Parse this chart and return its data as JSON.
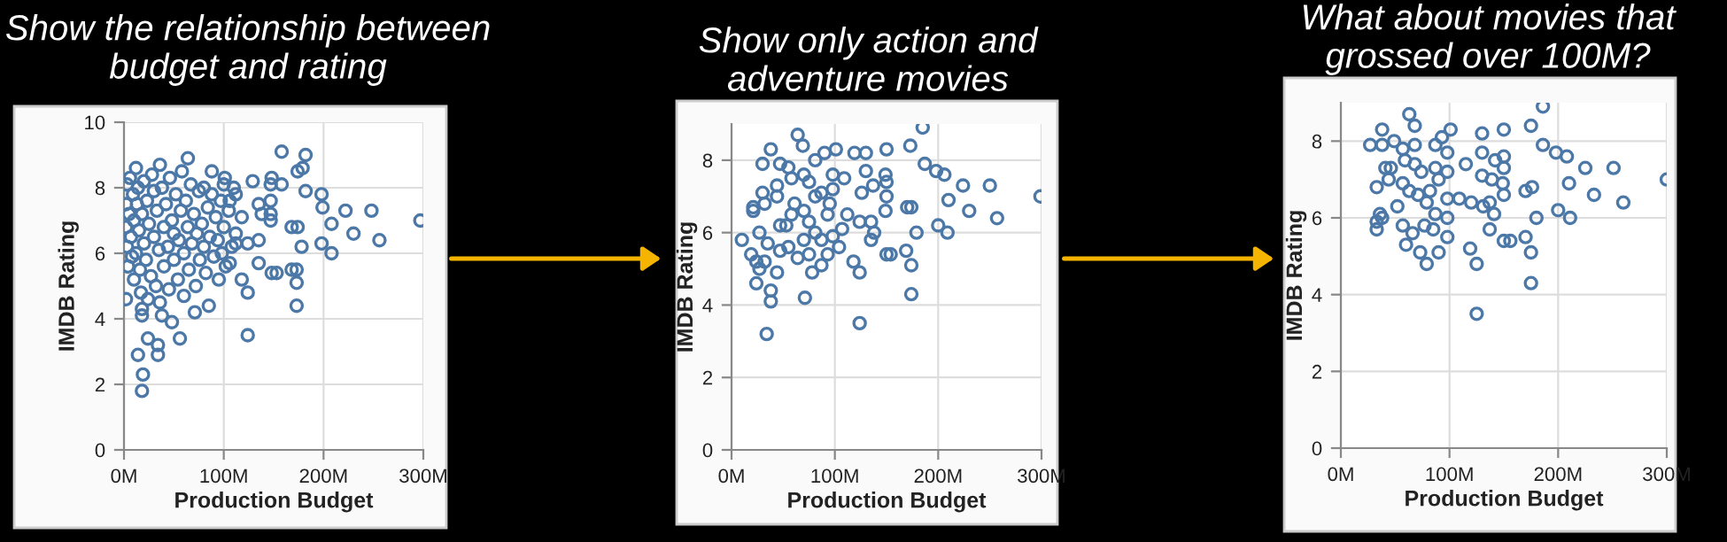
{
  "chart_data": [
    {
      "type": "scatter",
      "title": "Show the relationship between budget and rating",
      "xlabel": "Production Budget",
      "ylabel": "IMDB Rating",
      "xlim": [
        0,
        300
      ],
      "ylim": [
        0,
        10
      ],
      "xticks": [
        {
          "value": 0,
          "label": "0M"
        },
        {
          "value": 100,
          "label": "100M"
        },
        {
          "value": 200,
          "label": "200M"
        },
        {
          "value": 300,
          "label": "300M"
        }
      ],
      "yticks": [
        0,
        2,
        4,
        6,
        8,
        10
      ],
      "grid": true,
      "marker": "circle",
      "series": [
        {
          "color": "#4c78a8",
          "x": [
            2,
            2,
            3,
            3,
            4,
            5,
            6,
            7,
            8,
            9,
            10,
            10,
            12,
            13,
            14,
            15,
            16,
            17,
            18,
            20,
            20,
            22,
            23,
            24,
            25,
            27,
            28,
            30,
            30,
            32,
            33,
            35,
            36,
            38,
            40,
            40,
            42,
            44,
            45,
            46,
            48,
            50,
            50,
            52,
            54,
            55,
            57,
            58,
            60,
            60,
            62,
            64,
            65,
            67,
            68,
            70,
            72,
            73,
            75,
            76,
            78,
            80,
            80,
            82,
            84,
            86,
            88,
            90,
            92,
            94,
            95,
            97,
            98,
            100,
            100,
            102,
            105,
            108,
            110,
            112,
            158,
            182,
            174,
            179,
            182,
            198,
            199,
            208,
            222,
            230,
            248,
            256,
            297,
            198,
            208,
            178,
            168,
            174,
            168,
            173,
            173,
            173,
            148,
            147,
            158,
            147,
            147,
            147,
            148,
            153,
            124,
            124,
            118,
            129,
            135,
            138,
            135,
            135,
            124,
            112,
            106,
            112,
            106,
            118,
            18,
            19,
            14,
            24,
            34,
            34,
            56,
            2,
            38,
            48,
            71,
            85,
            18,
            18,
            64,
            36,
            12,
            88,
            101
          ],
          "values": [
            7.5,
            6.8,
            8.1,
            6.2,
            5.6,
            7.2,
            8.3,
            6.5,
            5.9,
            7.8,
            7.0,
            5.2,
            6.0,
            7.5,
            8.0,
            6.7,
            5.5,
            4.8,
            7.2,
            6.3,
            8.2,
            5.8,
            7.6,
            4.6,
            6.9,
            5.3,
            8.4,
            6.5,
            7.9,
            5.0,
            7.3,
            6.1,
            4.5,
            8.0,
            6.8,
            5.6,
            7.5,
            6.2,
            4.9,
            8.3,
            7.0,
            5.8,
            6.6,
            7.8,
            5.2,
            6.4,
            7.3,
            8.5,
            6.0,
            4.7,
            7.6,
            6.8,
            5.5,
            8.1,
            6.3,
            7.2,
            5.0,
            6.6,
            7.9,
            5.8,
            6.9,
            6.2,
            8.0,
            5.4,
            7.4,
            6.5,
            7.8,
            5.9,
            7.1,
            6.4,
            5.2,
            7.6,
            6.0,
            6.8,
            8.1,
            5.6,
            7.3,
            6.2,
            8.0,
            6.6,
            9.1,
            9.0,
            8.5,
            8.6,
            7.9,
            7.8,
            7.4,
            6.9,
            7.3,
            6.6,
            7.3,
            6.4,
            7.0,
            6.3,
            6.0,
            6.2,
            6.8,
            6.8,
            5.5,
            5.5,
            5.1,
            4.4,
            8.3,
            8.1,
            8.1,
            7.6,
            7.2,
            7.0,
            5.4,
            5.4,
            3.5,
            4.8,
            5.2,
            8.2,
            7.5,
            7.2,
            6.4,
            5.7,
            6.3,
            6.3,
            5.7,
            7.8,
            7.6,
            7.1,
            1.8,
            2.3,
            2.9,
            3.4,
            3.2,
            2.9,
            3.4,
            4.6,
            4.1,
            3.9,
            4.2,
            4.4,
            4.1,
            4.3,
            8.9,
            8.7,
            8.6,
            8.5,
            8.3
          ]
        }
      ]
    },
    {
      "type": "scatter",
      "title": "Show only action and adventure movies",
      "xlabel": "Production Budget",
      "ylabel": "IMDB Rating",
      "xlim": [
        0,
        300
      ],
      "ylim": [
        0,
        9
      ],
      "xticks": [
        {
          "value": 0,
          "label": "0M"
        },
        {
          "value": 100,
          "label": "100M"
        },
        {
          "value": 200,
          "label": "200M"
        },
        {
          "value": 300,
          "label": "300M"
        }
      ],
      "yticks": [
        0,
        2,
        4,
        6,
        8
      ],
      "grid": true,
      "marker": "circle",
      "series": [
        {
          "color": "#4c78a8",
          "x": [
            185,
            173,
            150,
            119,
            187,
            198,
            206,
            224,
            250,
            210,
            230,
            299,
            257,
            200,
            209,
            179,
            174,
            170,
            150,
            154,
            169,
            174,
            174,
            124,
            124,
            118,
            149,
            150,
            150,
            149,
            137,
            130,
            130,
            126,
            135,
            138,
            135,
            124,
            112,
            109,
            101,
            98,
            90,
            81,
            64,
            69,
            38,
            30,
            47,
            55,
            58,
            70,
            44,
            30,
            21,
            21,
            32,
            44,
            10,
            19,
            24,
            24,
            27,
            32,
            38,
            38,
            44,
            34,
            71,
            78,
            87,
            27,
            35,
            47,
            47,
            58,
            61,
            70,
            75,
            81,
            87,
            93,
            98,
            87,
            75,
            64,
            55,
            93,
            104,
            107,
            81,
            70,
            53,
            75,
            95,
            98
          ],
          "values": [
            8.9,
            8.4,
            8.3,
            8.2,
            7.9,
            7.7,
            7.6,
            7.3,
            7.3,
            6.9,
            6.6,
            7.0,
            6.4,
            6.2,
            6.0,
            6.0,
            6.7,
            6.7,
            5.4,
            5.4,
            5.5,
            5.1,
            4.3,
            3.5,
            4.9,
            5.2,
            7.6,
            7.4,
            7.0,
            6.6,
            7.3,
            7.7,
            8.2,
            7.1,
            6.3,
            6.0,
            5.8,
            6.3,
            6.5,
            7.5,
            8.3,
            7.6,
            8.2,
            8.0,
            8.7,
            8.4,
            8.3,
            7.9,
            7.9,
            7.8,
            7.5,
            7.6,
            7.3,
            7.1,
            6.7,
            6.6,
            6.8,
            7.0,
            5.8,
            5.4,
            5.2,
            4.6,
            5.0,
            5.2,
            4.4,
            4.1,
            4.9,
            3.2,
            4.2,
            4.9,
            5.1,
            6.0,
            5.7,
            6.2,
            5.5,
            6.5,
            6.8,
            6.6,
            6.3,
            7.0,
            7.1,
            6.5,
            5.9,
            5.8,
            5.4,
            5.3,
            5.6,
            5.4,
            5.6,
            6.1,
            6.0,
            5.8,
            6.2,
            7.4,
            6.8,
            7.2
          ]
        }
      ]
    },
    {
      "type": "scatter",
      "title": "What about movies that grossed over 100M?",
      "xlabel": "Production Budget",
      "ylabel": "IMDB Rating",
      "xlim": [
        0,
        300
      ],
      "ylim": [
        0,
        9
      ],
      "xticks": [
        {
          "value": 0,
          "label": "0M"
        },
        {
          "value": 100,
          "label": "100M"
        },
        {
          "value": 200,
          "label": "200M"
        },
        {
          "value": 300,
          "label": "300M"
        }
      ],
      "yticks": [
        0,
        2,
        4,
        6,
        8
      ],
      "grid": true,
      "marker": "circle",
      "series": [
        {
          "color": "#4c78a8",
          "x": [
            186,
            175,
            150,
            130,
            186,
            198,
            208,
            225,
            251,
            210,
            233,
            300,
            260,
            200,
            211,
            180,
            176,
            170,
            150,
            156,
            170,
            175,
            175,
            125,
            125,
            119,
            150,
            150,
            149,
            150,
            142,
            130,
            130,
            139,
            137,
            141,
            137,
            131,
            120,
            109,
            115,
            101,
            98,
            93,
            87,
            63,
            68,
            38,
            27,
            38,
            49,
            57,
            68,
            59,
            41,
            46,
            33,
            44,
            36,
            38,
            33,
            33,
            52,
            57,
            60,
            73,
            79,
            90,
            66,
            77,
            85,
            98,
            98,
            87,
            79,
            71,
            63,
            57,
            82,
            90,
            98,
            98,
            87,
            74,
            68
          ],
          "values": [
            8.9,
            8.4,
            8.3,
            8.2,
            7.9,
            7.7,
            7.6,
            7.3,
            7.3,
            6.9,
            6.6,
            7.0,
            6.4,
            6.2,
            6.0,
            6.0,
            6.8,
            6.7,
            5.4,
            5.4,
            5.5,
            5.1,
            4.3,
            3.5,
            4.8,
            5.2,
            7.6,
            7.3,
            6.9,
            6.6,
            7.5,
            7.7,
            7.1,
            7.0,
            6.4,
            6.1,
            5.7,
            6.3,
            6.4,
            6.5,
            7.4,
            8.3,
            7.7,
            8.1,
            7.9,
            8.7,
            8.4,
            8.3,
            7.9,
            7.9,
            8.0,
            7.8,
            7.9,
            7.5,
            7.3,
            7.3,
            6.8,
            7.0,
            6.1,
            6.0,
            5.9,
            5.7,
            6.3,
            5.8,
            5.3,
            5.1,
            4.8,
            5.1,
            5.6,
            5.8,
            5.7,
            5.5,
            6.0,
            6.1,
            6.4,
            6.6,
            6.7,
            6.9,
            6.7,
            7.0,
            7.2,
            6.5,
            7.3,
            7.2,
            7.4
          ]
        }
      ]
    }
  ]
}
